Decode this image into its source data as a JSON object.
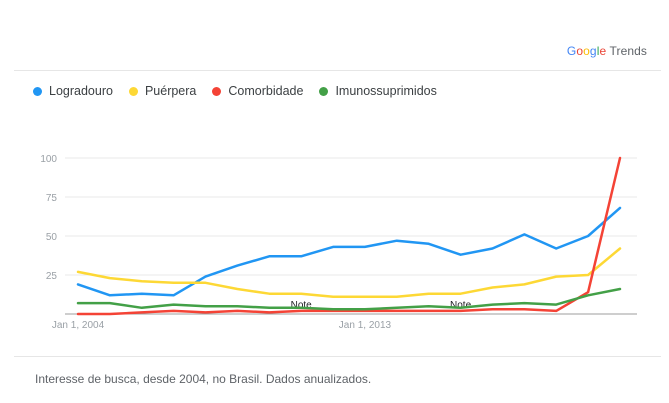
{
  "brand": {
    "google": [
      "G",
      "o",
      "o",
      "g",
      "l",
      "e"
    ],
    "trends": "Trends"
  },
  "legend": [
    {
      "label": "Logradouro",
      "color": "#2196f3"
    },
    {
      "label": "Puérpera",
      "color": "#fdd835"
    },
    {
      "label": "Comorbidade",
      "color": "#f44336"
    },
    {
      "label": "Imunossuprimidos",
      "color": "#43a047"
    }
  ],
  "footer": "Interesse de busca, desde 2004, no Brasil. Dados anualizados.",
  "chart_data": {
    "type": "line",
    "x": [
      2004,
      2005,
      2006,
      2007,
      2008,
      2009,
      2010,
      2011,
      2012,
      2013,
      2014,
      2015,
      2016,
      2017,
      2018,
      2019,
      2020,
      2021
    ],
    "x_tick_labels": [
      {
        "x": 2004,
        "label": "Jan 1, 2004"
      },
      {
        "x": 2013,
        "label": "Jan 1, 2013"
      }
    ],
    "ylim": [
      0,
      100
    ],
    "y_ticks": [
      0,
      25,
      50,
      75,
      100
    ],
    "y_tick_labels": [
      "",
      "25",
      "50",
      "75",
      "100"
    ],
    "grid": true,
    "notes": [
      {
        "x": 2011,
        "label": "Note"
      },
      {
        "x": 2016,
        "label": "Note"
      }
    ],
    "series": [
      {
        "name": "Logradouro",
        "color": "#2196f3",
        "values": [
          19,
          12,
          13,
          12,
          24,
          31,
          37,
          37,
          43,
          43,
          47,
          45,
          38,
          42,
          51,
          42,
          50,
          68
        ]
      },
      {
        "name": "Puérpera",
        "color": "#fdd835",
        "values": [
          27,
          23,
          21,
          20,
          20,
          16,
          13,
          13,
          11,
          11,
          11,
          13,
          13,
          17,
          19,
          24,
          25,
          42
        ]
      },
      {
        "name": "Comorbidade",
        "color": "#f44336",
        "values": [
          0,
          0,
          1,
          2,
          1,
          2,
          1,
          2,
          2,
          2,
          2,
          2,
          2,
          3,
          3,
          2,
          14,
          100
        ]
      },
      {
        "name": "Imunossuprimidos",
        "color": "#43a047",
        "values": [
          7,
          7,
          4,
          6,
          5,
          5,
          4,
          4,
          3,
          3,
          4,
          5,
          4,
          6,
          7,
          6,
          12,
          16
        ]
      }
    ]
  }
}
